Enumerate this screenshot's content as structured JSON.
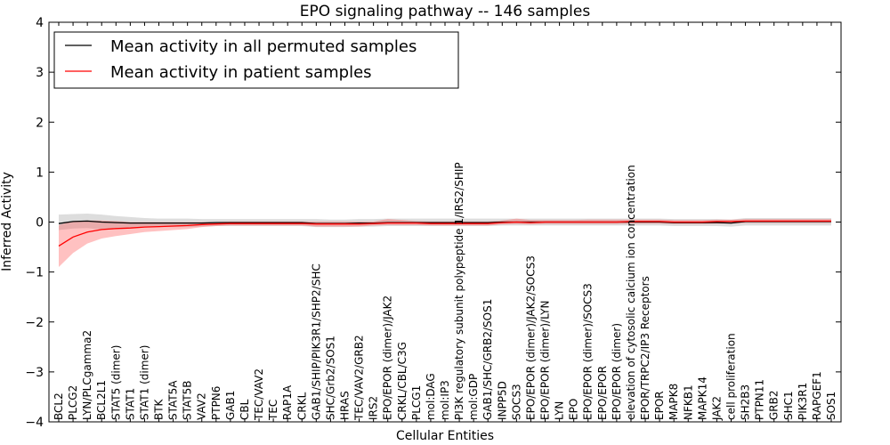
{
  "chart_data": {
    "type": "line",
    "title": "EPO signaling pathway -- 146 samples",
    "xlabel": "Cellular Entities",
    "ylabel": "Inferred Activity",
    "ylim": [
      -4,
      4
    ],
    "yticks": [
      "−4",
      "−3",
      "−2",
      "−1",
      "0",
      "1",
      "2",
      "3",
      "4"
    ],
    "yticks_values": [
      -4,
      -3,
      -2,
      -1,
      0,
      1,
      2,
      3,
      4
    ],
    "legend_position": "top-left",
    "categories": [
      "BCL2",
      "PLCG2",
      "LYN/PLCgamma2",
      "BCL2L1",
      "STAT5 (dimer)",
      "STAT1",
      "STAT1 (dimer)",
      "BTK",
      "STAT5A",
      "STAT5B",
      "VAV2",
      "PTPN6",
      "GAB1",
      "CBL",
      "TEC/VAV2",
      "TEC",
      "RAP1A",
      "CRKL",
      "GAB1/SHIP/PIK3R1/SHP2/SHC",
      "SHC/Grb2/SOS1",
      "HRAS",
      "TEC/VAV2/GRB2",
      "IRS2",
      "EPO/EPOR (dimer)/JAK2",
      "CRKL/CBL/C3G",
      "PLCG1",
      "mol:DAG",
      "mol:IP3",
      "PI3K regulatory subunit polypeptide 1/IRS2/SHIP",
      "mol:GDP",
      "GAB1/SHC/GRB2/SOS1",
      "INPP5D",
      "SOCS3",
      "EPO/EPOR (dimer)/JAK2/SOCS3",
      "EPO/EPOR (dimer)/LYN",
      "LYN",
      "EPO",
      "EPO/EPOR (dimer)/SOCS3",
      "EPO/EPOR",
      "EPO/EPOR (dimer)",
      "elevation of cytosolic calcium ion concentration",
      "EPOR/TRPC2/IP3 Receptors",
      "EPOR",
      "MAPK8",
      "NFKB1",
      "MAPK14",
      "JAK2",
      "cell proliferation",
      "SH2B3",
      "PTPN11",
      "GRB2",
      "SHC1",
      "PIK3R1",
      "RAPGEF1",
      "SOS1"
    ],
    "series": [
      {
        "name": "Mean activity in all permuted samples",
        "color": "#000000",
        "values": [
          -0.03,
          0.01,
          0.02,
          0.0,
          -0.01,
          -0.02,
          -0.02,
          -0.02,
          -0.02,
          -0.02,
          -0.02,
          -0.01,
          -0.01,
          -0.01,
          -0.01,
          -0.01,
          -0.01,
          -0.01,
          -0.03,
          -0.03,
          -0.03,
          -0.02,
          -0.02,
          -0.01,
          -0.01,
          -0.01,
          -0.01,
          -0.01,
          -0.01,
          -0.01,
          -0.01,
          0.0,
          0.0,
          0.0,
          0.0,
          0.0,
          0.0,
          0.0,
          0.0,
          0.0,
          0.0,
          0.0,
          0.0,
          -0.01,
          -0.01,
          -0.01,
          -0.01,
          -0.02,
          0.01,
          0.01,
          0.01,
          0.01,
          0.01,
          0.01,
          0.01
        ],
        "lower": [
          -0.16,
          -0.13,
          -0.12,
          -0.15,
          -0.13,
          -0.12,
          -0.1,
          -0.1,
          -0.1,
          -0.1,
          -0.09,
          -0.08,
          -0.08,
          -0.08,
          -0.08,
          -0.08,
          -0.08,
          -0.08,
          -0.1,
          -0.1,
          -0.1,
          -0.09,
          -0.09,
          -0.08,
          -0.08,
          -0.08,
          -0.08,
          -0.08,
          -0.08,
          -0.08,
          -0.08,
          -0.07,
          -0.07,
          -0.07,
          -0.07,
          -0.07,
          -0.07,
          -0.07,
          -0.07,
          -0.07,
          -0.07,
          -0.07,
          -0.07,
          -0.08,
          -0.08,
          -0.08,
          -0.08,
          -0.09,
          -0.07,
          -0.07,
          -0.07,
          -0.07,
          -0.07,
          -0.07,
          -0.07
        ],
        "upper": [
          0.15,
          0.16,
          0.17,
          0.15,
          0.12,
          0.1,
          0.08,
          0.07,
          0.07,
          0.07,
          0.06,
          0.06,
          0.06,
          0.06,
          0.06,
          0.06,
          0.06,
          0.06,
          0.06,
          0.05,
          0.05,
          0.06,
          0.06,
          0.07,
          0.07,
          0.07,
          0.07,
          0.07,
          0.07,
          0.07,
          0.07,
          0.07,
          0.07,
          0.07,
          0.07,
          0.07,
          0.07,
          0.07,
          0.07,
          0.07,
          0.07,
          0.07,
          0.07,
          0.06,
          0.06,
          0.06,
          0.06,
          0.05,
          0.08,
          0.08,
          0.08,
          0.08,
          0.08,
          0.08,
          0.08
        ]
      },
      {
        "name": "Mean activity in patient samples",
        "color": "#ff0000",
        "values": [
          -0.48,
          -0.3,
          -0.2,
          -0.15,
          -0.13,
          -0.12,
          -0.1,
          -0.09,
          -0.08,
          -0.07,
          -0.05,
          -0.04,
          -0.03,
          -0.03,
          -0.03,
          -0.03,
          -0.03,
          -0.03,
          -0.04,
          -0.04,
          -0.04,
          -0.04,
          -0.03,
          -0.02,
          -0.02,
          -0.02,
          -0.03,
          -0.03,
          -0.03,
          -0.03,
          -0.03,
          -0.01,
          0.0,
          -0.01,
          0.0,
          0.0,
          0.0,
          0.0,
          0.0,
          0.0,
          0.01,
          0.01,
          0.01,
          0.0,
          0.0,
          0.0,
          0.01,
          0.01,
          0.02,
          0.02,
          0.02,
          0.02,
          0.02,
          0.02,
          0.02
        ],
        "lower": [
          -0.9,
          -0.62,
          -0.43,
          -0.33,
          -0.28,
          -0.24,
          -0.2,
          -0.18,
          -0.16,
          -0.14,
          -0.1,
          -0.08,
          -0.07,
          -0.07,
          -0.07,
          -0.07,
          -0.07,
          -0.07,
          -0.09,
          -0.09,
          -0.09,
          -0.09,
          -0.07,
          -0.06,
          -0.06,
          -0.06,
          -0.07,
          -0.07,
          -0.07,
          -0.07,
          -0.07,
          -0.05,
          -0.04,
          -0.05,
          -0.04,
          -0.04,
          -0.04,
          -0.04,
          -0.04,
          -0.04,
          -0.03,
          -0.03,
          -0.03,
          -0.04,
          -0.04,
          -0.04,
          -0.03,
          -0.03,
          -0.02,
          -0.02,
          -0.02,
          -0.02,
          -0.02,
          -0.02,
          -0.02
        ],
        "upper": [
          -0.06,
          0.02,
          0.03,
          0.03,
          0.02,
          0.0,
          0.0,
          0.0,
          0.0,
          0.0,
          0.0,
          0.0,
          0.01,
          0.01,
          0.01,
          0.01,
          0.01,
          0.01,
          0.01,
          0.01,
          0.01,
          0.01,
          0.01,
          0.06,
          0.04,
          0.02,
          0.01,
          0.01,
          0.01,
          0.01,
          0.01,
          0.03,
          0.07,
          0.04,
          0.04,
          0.04,
          0.04,
          0.05,
          0.05,
          0.05,
          0.05,
          0.05,
          0.05,
          0.04,
          0.04,
          0.04,
          0.05,
          0.05,
          0.06,
          0.06,
          0.06,
          0.06,
          0.06,
          0.06,
          0.06
        ]
      }
    ]
  }
}
